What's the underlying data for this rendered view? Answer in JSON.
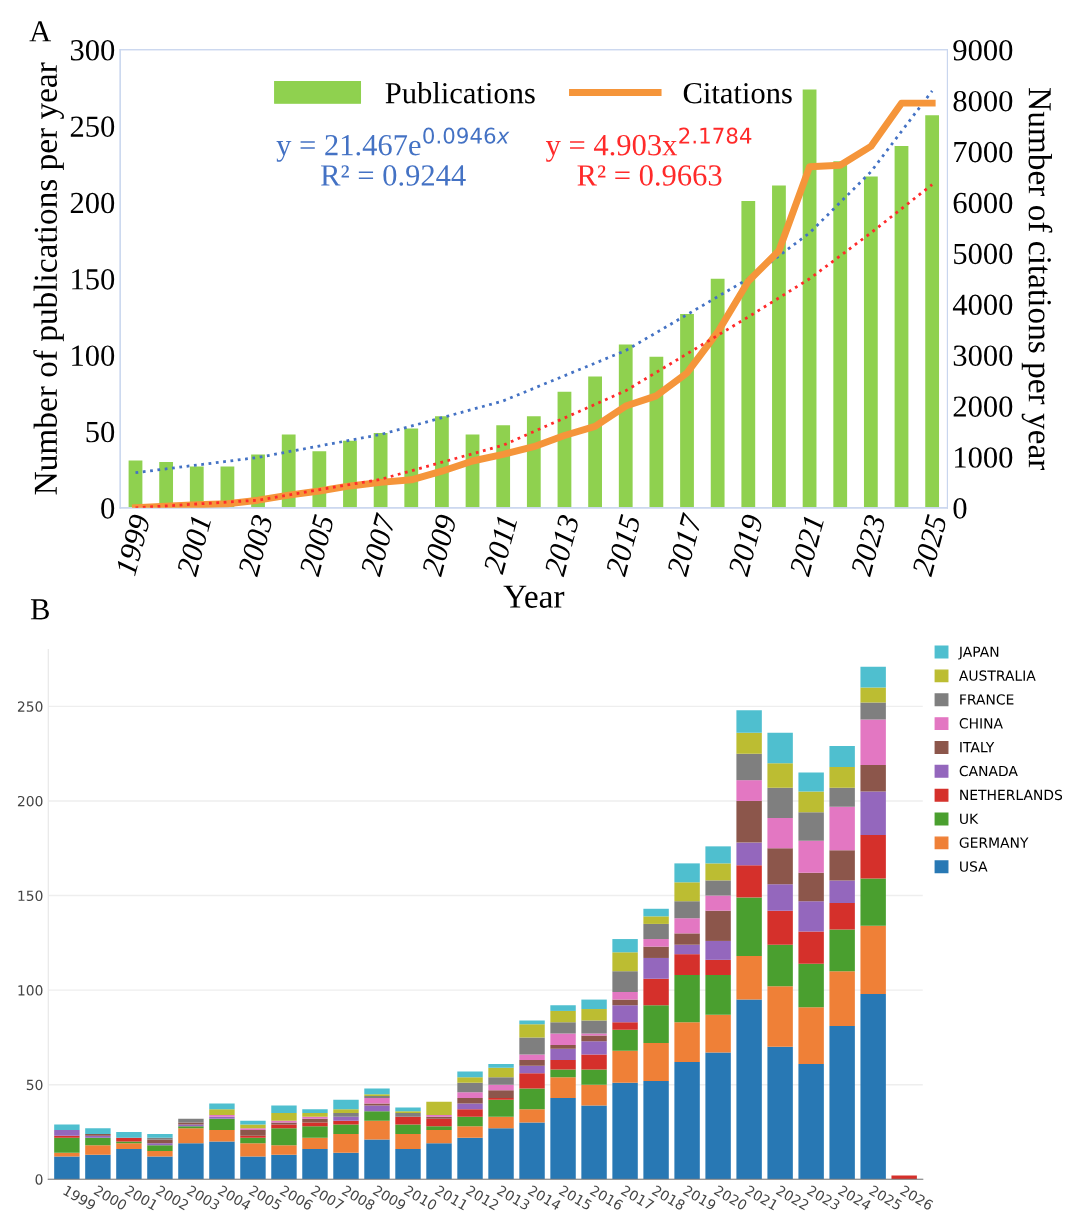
{
  "chart_data": [
    {
      "type": "bar",
      "title": "A",
      "xlabel": "Year",
      "ylabel": "Number of publications per year",
      "y2label": "Number of citations per year",
      "x": [
        1999,
        2000,
        2001,
        2002,
        2003,
        2004,
        2005,
        2006,
        2007,
        2008,
        2009,
        2010,
        2011,
        2012,
        2013,
        2014,
        2015,
        2016,
        2017,
        2018,
        2019,
        2020,
        2021,
        2022,
        2023,
        2024,
        2025
      ],
      "series": [
        {
          "name": "Publications",
          "color": "#8fd14f",
          "values": [
            31,
            30,
            27,
            27,
            35,
            48,
            37,
            44,
            49,
            52,
            60,
            48,
            54,
            60,
            76,
            86,
            107,
            99,
            127,
            150,
            201,
            211,
            274,
            227,
            217,
            237,
            257
          ]
        },
        {
          "name": "Citations",
          "type": "line",
          "axis": "y2",
          "color": "#f5953a",
          "values": [
            0,
            30,
            60,
            80,
            150,
            250,
            330,
            430,
            500,
            550,
            720,
            920,
            1050,
            1200,
            1420,
            1600,
            2000,
            2200,
            2650,
            3450,
            4450,
            5050,
            6700,
            6730,
            7100,
            7950,
            7950
          ]
        },
        {
          "type": "line",
          "line_style": "dotted",
          "color": "#4472c4",
          "x": [
            1999,
            2003,
            2007,
            2011,
            2015,
            2019,
            2021,
            2023,
            2025
          ],
          "values": [
            23,
            33,
            48,
            70,
            103,
            150,
            180,
            220,
            273
          ]
        },
        {
          "type": "line",
          "axis": "y2",
          "line_style": "dotted",
          "color": "#ff2a2a",
          "x": [
            1999,
            2003,
            2007,
            2011,
            2015,
            2019,
            2021,
            2023,
            2025
          ],
          "values": [
            0,
            150,
            560,
            1230,
            2300,
            3750,
            4500,
            5400,
            6350
          ]
        }
      ],
      "annotations": [
        "y = 21.467e$^{0.0946x}$\nR² = 0.9244",
        "y = 4.903x$^{2.1784}$\nR² = 0.9663"
      ],
      "xlim": [
        1998.5,
        2025.5
      ],
      "xticks": [
        1999,
        2001,
        2003,
        2005,
        2007,
        2009,
        2011,
        2013,
        2015,
        2017,
        2019,
        2021,
        2023,
        2025
      ],
      "ylim": [
        0,
        300
      ],
      "yticks": [
        0,
        50,
        100,
        150,
        200,
        250,
        300
      ],
      "y2lim": [
        0,
        9000
      ],
      "y2ticks": [
        0,
        1000,
        2000,
        3000,
        4000,
        5000,
        6000,
        7000,
        8000,
        9000
      ],
      "legend": "top"
    },
    {
      "type": "bar",
      "title": "B",
      "stacked": true,
      "categories": [
        "1999",
        "2000",
        "2001",
        "2002",
        "2003",
        "2004",
        "2005",
        "2006",
        "2007",
        "2008",
        "2009",
        "2010",
        "2011",
        "2012",
        "2013",
        "2014",
        "2015",
        "2016",
        "2017",
        "2018",
        "2019",
        "2020",
        "2021",
        "2022",
        "2023",
        "2024",
        "2025",
        "2026"
      ],
      "series": [
        {
          "name": "USA",
          "color": "#2878b4",
          "values": [
            12,
            13,
            16,
            12,
            19,
            20,
            12,
            13,
            16,
            14,
            21,
            16,
            19,
            22,
            27,
            30,
            43,
            39,
            51,
            52,
            62,
            67,
            95,
            70,
            61,
            81,
            98,
            0
          ]
        },
        {
          "name": "GERMANY",
          "color": "#ef8037",
          "values": [
            2,
            5,
            3,
            3,
            8,
            6,
            7,
            5,
            6,
            10,
            10,
            8,
            7,
            6,
            6,
            7,
            11,
            11,
            17,
            20,
            21,
            20,
            23,
            32,
            30,
            29,
            36,
            0
          ]
        },
        {
          "name": "UK",
          "color": "#4a9f2f",
          "values": [
            8,
            4,
            1,
            3,
            1,
            6,
            3,
            9,
            6,
            5,
            5,
            5,
            2,
            5,
            9,
            11,
            4,
            8,
            11,
            20,
            25,
            21,
            31,
            22,
            23,
            22,
            25,
            0
          ]
        },
        {
          "name": "NETHERLANDS",
          "color": "#d5302b",
          "values": [
            1,
            0,
            2,
            0,
            0,
            0,
            1,
            2,
            2,
            2,
            0,
            4,
            4,
            4,
            1,
            8,
            5,
            8,
            4,
            14,
            11,
            8,
            17,
            18,
            17,
            14,
            23,
            2
          ]
        },
        {
          "name": "CANADA",
          "color": "#9467bd",
          "values": [
            3,
            1,
            0,
            1,
            1,
            1,
            0,
            0,
            0,
            2,
            3,
            0,
            0,
            3,
            0,
            4,
            6,
            7,
            9,
            11,
            5,
            10,
            12,
            14,
            16,
            12,
            23,
            0
          ]
        },
        {
          "name": "ITALY",
          "color": "#8c564b",
          "values": [
            0,
            1,
            0,
            2,
            1,
            0,
            3,
            1,
            2,
            0,
            1,
            0,
            1,
            3,
            4,
            3,
            2,
            3,
            3,
            6,
            6,
            16,
            22,
            19,
            15,
            16,
            14,
            0
          ]
        },
        {
          "name": "CHINA",
          "color": "#e377c2",
          "values": [
            0,
            0,
            0,
            0,
            0,
            1,
            1,
            1,
            1,
            0,
            3,
            0,
            1,
            3,
            3,
            3,
            6,
            1,
            4,
            4,
            8,
            8,
            11,
            16,
            17,
            23,
            24,
            0
          ]
        },
        {
          "name": "FRANCE",
          "color": "#7f7f7f",
          "values": [
            0,
            0,
            0,
            1,
            2,
            0,
            0,
            0,
            0,
            2,
            1,
            2,
            0,
            5,
            4,
            9,
            6,
            7,
            11,
            8,
            9,
            8,
            14,
            16,
            15,
            10,
            9,
            0
          ]
        },
        {
          "name": "AUSTRALIA",
          "color": "#bcbd32",
          "values": [
            0,
            0,
            0,
            0,
            0,
            3,
            2,
            4,
            2,
            2,
            1,
            1,
            7,
            3,
            5,
            7,
            6,
            6,
            10,
            4,
            10,
            9,
            11,
            13,
            11,
            11,
            8,
            0
          ]
        },
        {
          "name": "JAPAN",
          "color": "#4fbfcf",
          "values": [
            3,
            3,
            3,
            2,
            0,
            3,
            2,
            4,
            2,
            5,
            3,
            2,
            0,
            3,
            2,
            2,
            3,
            5,
            7,
            4,
            10,
            9,
            12,
            16,
            10,
            11,
            11,
            0
          ]
        }
      ],
      "ylim": [
        0,
        280
      ],
      "yticks": [
        0,
        50,
        100,
        150,
        200,
        250
      ],
      "grid": "y",
      "legend": "right"
    }
  ]
}
